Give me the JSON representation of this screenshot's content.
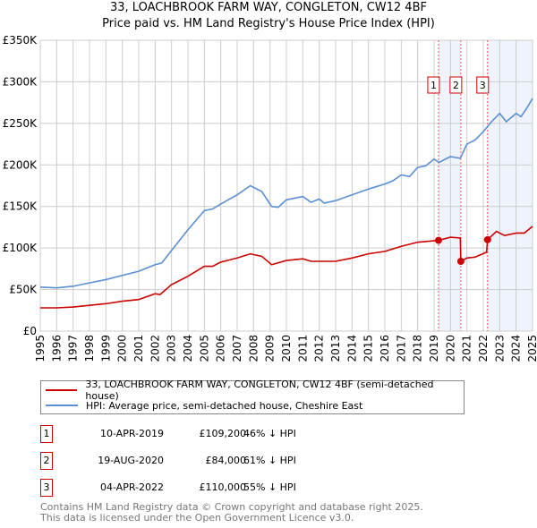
{
  "title": "33, LOACHBROOK FARM WAY, CONGLETON, CW12 4BF",
  "subtitle": "Price paid vs. HM Land Registry's House Price Index (HPI)",
  "chart_data": {
    "type": "line",
    "ylim": [
      0,
      350000
    ],
    "xlim": [
      1995,
      2025
    ],
    "yticks": [
      {
        "v": 0,
        "label": "£0"
      },
      {
        "v": 50000,
        "label": "£50K"
      },
      {
        "v": 100000,
        "label": "£100K"
      },
      {
        "v": 150000,
        "label": "£150K"
      },
      {
        "v": 200000,
        "label": "£200K"
      },
      {
        "v": 250000,
        "label": "£250K"
      },
      {
        "v": 300000,
        "label": "£300K"
      },
      {
        "v": 350000,
        "label": "£350K"
      }
    ],
    "xticks": [
      "1995",
      "1996",
      "1997",
      "1998",
      "1999",
      "2000",
      "2001",
      "2002",
      "2003",
      "2004",
      "2005",
      "2006",
      "2007",
      "2008",
      "2009",
      "2010",
      "2011",
      "2012",
      "2013",
      "2014",
      "2015",
      "2016",
      "2017",
      "2018",
      "2019",
      "2020",
      "2021",
      "2022",
      "2023",
      "2024",
      "2025"
    ],
    "grid": true,
    "colors": {
      "property": "#cc0000",
      "hpi": "#5b8fd4",
      "shade": "#eef3fc"
    },
    "series": [
      {
        "name": "33, LOACHBROOK FARM WAY, CONGLETON, CW12 4BF (semi-detached house)",
        "x": [
          1995,
          1996,
          1997,
          1998,
          1999,
          2000,
          2001,
          2002,
          2002.3,
          2003,
          2004,
          2005,
          2005.5,
          2006,
          2007,
          2007.8,
          2008.5,
          2009.1,
          2010,
          2011,
          2011.5,
          2012,
          2013,
          2014,
          2015,
          2016,
          2017,
          2018,
          2019.27,
          2020,
          2020.6,
          2020.63,
          2021,
          2021.5,
          2022.2,
          2022.26,
          2022.8,
          2023.3,
          2024,
          2024.5,
          2025
        ],
        "y": [
          28000,
          28000,
          29000,
          31000,
          33000,
          36000,
          38000,
          45000,
          44000,
          56000,
          66000,
          78000,
          78000,
          83000,
          88000,
          93000,
          90000,
          80000,
          85000,
          87000,
          84000,
          84000,
          84000,
          88000,
          93000,
          96000,
          102000,
          107000,
          109200,
          113000,
          112000,
          84000,
          88000,
          89000,
          95000,
          110000,
          120000,
          115000,
          118000,
          118000,
          126000
        ]
      },
      {
        "name": "HPI: Average price, semi-detached house, Cheshire East",
        "x": [
          1995,
          1996,
          1997,
          1998,
          1999,
          2000,
          2001,
          2002,
          2002.4,
          2003,
          2004,
          2005,
          2005.5,
          2006,
          2007,
          2007.8,
          2008.5,
          2009.1,
          2009.5,
          2010,
          2011,
          2011.5,
          2012,
          2012.3,
          2013,
          2014,
          2015,
          2015.5,
          2016,
          2016.5,
          2017,
          2017.5,
          2018,
          2018.5,
          2019,
          2019.3,
          2020,
          2020.6,
          2021,
          2021.5,
          2022,
          2022.5,
          2023,
          2023.4,
          2024,
          2024.3,
          2024.7,
          2025
        ],
        "y": [
          53000,
          52000,
          54000,
          58000,
          62000,
          67000,
          72000,
          80000,
          82000,
          97000,
          122000,
          145000,
          147000,
          153000,
          164000,
          175000,
          168000,
          150000,
          149000,
          158000,
          162000,
          155000,
          159000,
          154000,
          157000,
          164000,
          171000,
          174000,
          177000,
          181000,
          188000,
          186000,
          197000,
          199000,
          207000,
          203000,
          210000,
          208000,
          225000,
          230000,
          240000,
          252000,
          262000,
          252000,
          262000,
          258000,
          270000,
          280000
        ]
      }
    ],
    "sales": [
      {
        "n": "1",
        "x": 2019.27,
        "y": 109200
      },
      {
        "n": "2",
        "x": 2020.63,
        "y": 84000
      },
      {
        "n": "3",
        "x": 2022.26,
        "y": 110000
      }
    ],
    "shaded": [
      [
        2019.27,
        2020.63
      ],
      [
        2022.26,
        2025
      ]
    ]
  },
  "legend": [
    "33, LOACHBROOK FARM WAY, CONGLETON, CW12 4BF (semi-detached house)",
    "HPI: Average price, semi-detached house, Cheshire East"
  ],
  "table": [
    {
      "n": "1",
      "date": "10-APR-2019",
      "price": "£109,200",
      "hpi": "46% ↓ HPI"
    },
    {
      "n": "2",
      "date": "19-AUG-2020",
      "price": "£84,000",
      "hpi": "61% ↓ HPI"
    },
    {
      "n": "3",
      "date": "04-APR-2022",
      "price": "£110,000",
      "hpi": "55% ↓ HPI"
    }
  ],
  "footer": [
    "Contains HM Land Registry data © Crown copyright and database right 2025.",
    "This data is licensed under the Open Government Licence v3.0."
  ]
}
